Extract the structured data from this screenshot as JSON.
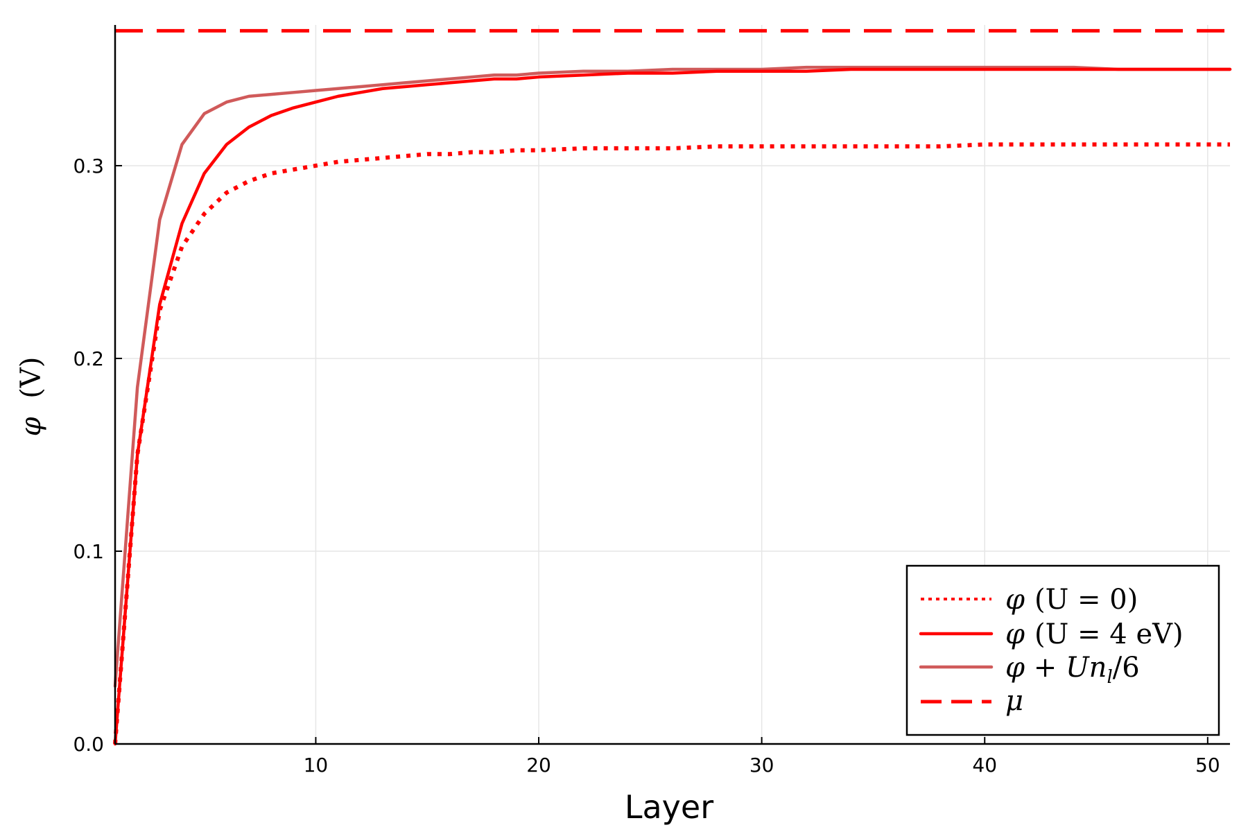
{
  "chart_data": {
    "type": "line",
    "xlabel": "Layer",
    "ylabel": "φ (V)",
    "xlim": [
      1,
      51
    ],
    "ylim": [
      0.0,
      0.373
    ],
    "xticks": [
      10,
      20,
      30,
      40,
      50
    ],
    "yticks": [
      0.0,
      0.1,
      0.2,
      0.3
    ],
    "xtick_labels": [
      "10",
      "20",
      "30",
      "40",
      "50"
    ],
    "ytick_labels": [
      "0.0",
      "0.1",
      "0.2",
      "0.3"
    ],
    "grid": true,
    "legend_position": "bottom-right",
    "series": [
      {
        "name": "φ (U = 0)",
        "style": "dotted",
        "color": "#ff0000",
        "x": [
          1,
          2,
          3,
          4,
          5,
          6,
          7,
          8,
          9,
          10,
          11,
          12,
          13,
          14,
          15,
          16,
          17,
          18,
          19,
          20,
          22,
          24,
          26,
          28,
          30,
          32,
          34,
          36,
          38,
          40,
          42,
          44,
          46,
          48,
          50,
          51
        ],
        "y": [
          0.0,
          0.15,
          0.225,
          0.258,
          0.275,
          0.286,
          0.292,
          0.296,
          0.298,
          0.3,
          0.302,
          0.303,
          0.304,
          0.305,
          0.306,
          0.306,
          0.307,
          0.307,
          0.308,
          0.308,
          0.309,
          0.309,
          0.309,
          0.31,
          0.31,
          0.31,
          0.31,
          0.31,
          0.31,
          0.311,
          0.311,
          0.311,
          0.311,
          0.311,
          0.311,
          0.311
        ]
      },
      {
        "name": "φ (U = 4 eV)",
        "style": "solid",
        "color": "#ff0000",
        "x": [
          1,
          2,
          3,
          4,
          5,
          6,
          7,
          8,
          9,
          10,
          11,
          12,
          13,
          14,
          15,
          16,
          17,
          18,
          19,
          20,
          22,
          24,
          26,
          28,
          30,
          32,
          34,
          36,
          38,
          40,
          42,
          44,
          46,
          48,
          50,
          51
        ],
        "y": [
          0.0,
          0.15,
          0.228,
          0.27,
          0.296,
          0.311,
          0.32,
          0.326,
          0.33,
          0.333,
          0.336,
          0.338,
          0.34,
          0.341,
          0.342,
          0.343,
          0.344,
          0.345,
          0.345,
          0.346,
          0.347,
          0.348,
          0.348,
          0.349,
          0.349,
          0.349,
          0.35,
          0.35,
          0.35,
          0.35,
          0.35,
          0.35,
          0.35,
          0.35,
          0.35,
          0.35
        ]
      },
      {
        "name": "φ + Un_l/6",
        "style": "solid",
        "color": "#d05a5a",
        "x": [
          1,
          2,
          3,
          4,
          5,
          6,
          7,
          8,
          9,
          10,
          11,
          12,
          13,
          14,
          15,
          16,
          17,
          18,
          19,
          20,
          22,
          24,
          26,
          28,
          30,
          32,
          34,
          36,
          38,
          40,
          42,
          44,
          46,
          48,
          50,
          51
        ],
        "y": [
          0.03,
          0.185,
          0.272,
          0.311,
          0.327,
          0.333,
          0.336,
          0.337,
          0.338,
          0.339,
          0.34,
          0.341,
          0.342,
          0.343,
          0.344,
          0.345,
          0.346,
          0.347,
          0.347,
          0.348,
          0.349,
          0.349,
          0.35,
          0.35,
          0.35,
          0.351,
          0.351,
          0.351,
          0.351,
          0.351,
          0.351,
          0.351,
          0.35,
          0.35,
          0.35,
          0.35
        ]
      },
      {
        "name": "μ",
        "style": "dashed",
        "color": "#ff0000",
        "x": [
          1,
          51
        ],
        "y": [
          0.37,
          0.37
        ]
      }
    ],
    "legend_labels": {
      "s0_sym": "φ",
      "s0_rest": "(U = 0)",
      "s1_sym": "φ",
      "s1_rest": "(U = 4 eV)",
      "s2_sym": "φ + Un",
      "s2_sub": "l",
      "s2_rest": "/6",
      "s3_sym": "μ"
    },
    "ylabel_parts": {
      "sym": "φ",
      "unit": "(V)"
    }
  }
}
